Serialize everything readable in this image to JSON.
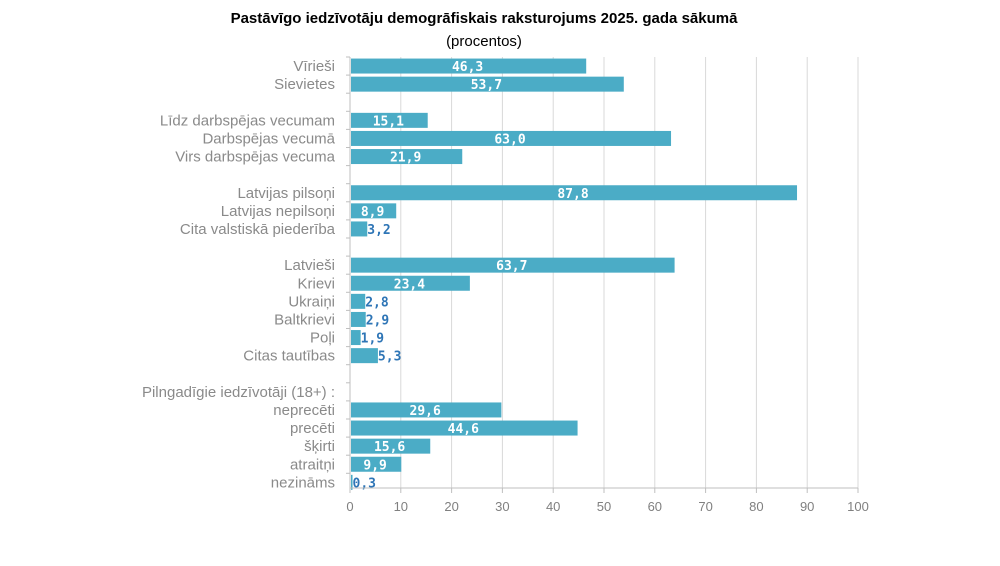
{
  "chart_data": {
    "type": "bar",
    "title": "Pastāvīgo iedzīvotāju demogrāfiskais raksturojums 2025. gada sākumā",
    "subtitle": "(procentos)",
    "xlim": [
      0,
      100
    ],
    "ticks": [
      0,
      10,
      20,
      30,
      40,
      50,
      60,
      70,
      80,
      90,
      100
    ],
    "grid": true,
    "bar_color": "#4bacc6",
    "label_color_inside": "#ffffff",
    "label_color_outside": "#2e75b6",
    "rows": [
      {
        "label": "Vīrieši",
        "value": 46.3,
        "value_label": "46,3"
      },
      {
        "label": "Sievietes",
        "value": 53.7,
        "value_label": "53,7"
      },
      {
        "label": "",
        "value": null,
        "value_label": ""
      },
      {
        "label": "Līdz darbspējas vecumam",
        "value": 15.1,
        "value_label": "15,1"
      },
      {
        "label": "Darbspējas vecumā",
        "value": 63.0,
        "value_label": "63,0"
      },
      {
        "label": "Virs darbspējas vecuma",
        "value": 21.9,
        "value_label": "21,9"
      },
      {
        "label": "",
        "value": null,
        "value_label": ""
      },
      {
        "label": "Latvijas pilsoņi",
        "value": 87.8,
        "value_label": "87,8"
      },
      {
        "label": "Latvijas nepilsoņi",
        "value": 8.9,
        "value_label": "8,9"
      },
      {
        "label": "Cita valstiskā piederība",
        "value": 3.2,
        "value_label": "3,2"
      },
      {
        "label": "",
        "value": null,
        "value_label": ""
      },
      {
        "label": "Latvieši",
        "value": 63.7,
        "value_label": "63,7"
      },
      {
        "label": "Krievi",
        "value": 23.4,
        "value_label": "23,4"
      },
      {
        "label": "Ukraiņi",
        "value": 2.8,
        "value_label": "2,8"
      },
      {
        "label": "Baltkrievi",
        "value": 2.9,
        "value_label": "2,9"
      },
      {
        "label": "Poļi",
        "value": 1.9,
        "value_label": "1,9"
      },
      {
        "label": "Citas tautības",
        "value": 5.3,
        "value_label": "5,3"
      },
      {
        "label": "",
        "value": null,
        "value_label": ""
      },
      {
        "label": "Pilngadīgie iedzīvotāji  (18+) :",
        "value": null,
        "value_label": ""
      },
      {
        "label": "neprecēti",
        "value": 29.6,
        "value_label": "29,6"
      },
      {
        "label": "precēti",
        "value": 44.6,
        "value_label": "44,6"
      },
      {
        "label": "šķirti",
        "value": 15.6,
        "value_label": "15,6"
      },
      {
        "label": "atraitņi",
        "value": 9.9,
        "value_label": "9,9"
      },
      {
        "label": "nezināms",
        "value": 0.3,
        "value_label": "0,3"
      }
    ]
  }
}
